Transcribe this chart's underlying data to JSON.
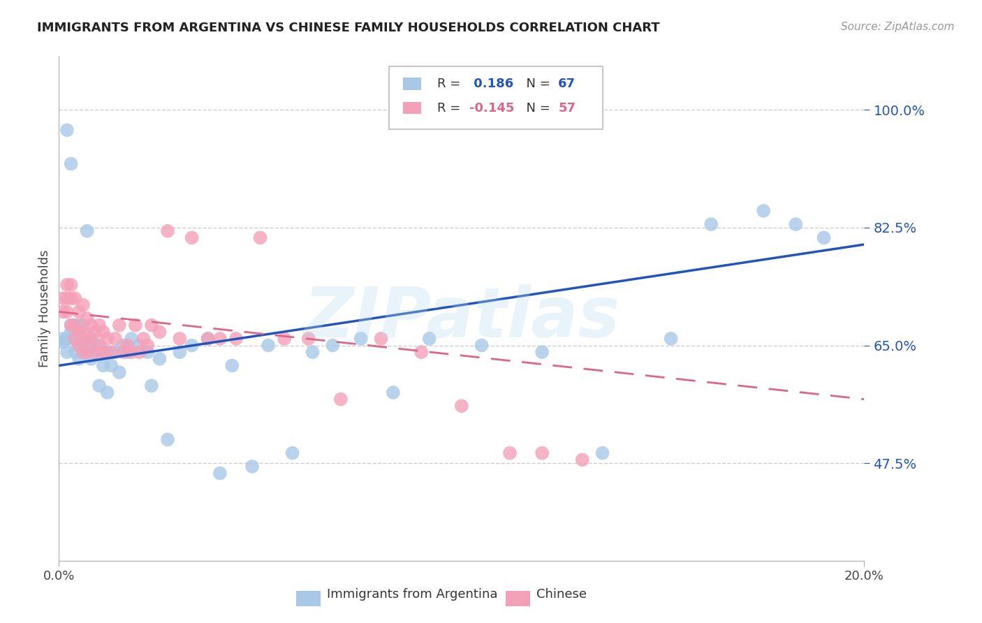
{
  "title": "IMMIGRANTS FROM ARGENTINA VS CHINESE FAMILY HOUSEHOLDS CORRELATION CHART",
  "source": "Source: ZipAtlas.com",
  "ylabel": "Family Households",
  "yticks": [
    0.475,
    0.65,
    0.825,
    1.0
  ],
  "ytick_labels": [
    "47.5%",
    "65.0%",
    "82.5%",
    "100.0%"
  ],
  "xmin": 0.0,
  "xmax": 0.2,
  "ymin": 0.33,
  "ymax": 1.08,
  "argentina_color": "#a8c8e8",
  "chinese_color": "#f4a0b8",
  "argentina_line_color": "#2255bb",
  "chinese_line_color": "#dd6688",
  "watermark": "ZIPatlas",
  "grid_color": "#cccccc",
  "background_color": "#ffffff",
  "arg_line_x": [
    0.0,
    0.2
  ],
  "arg_line_y": [
    0.62,
    0.8
  ],
  "chi_line_x": [
    0.0,
    0.2
  ],
  "chi_line_y": [
    0.7,
    0.57
  ]
}
